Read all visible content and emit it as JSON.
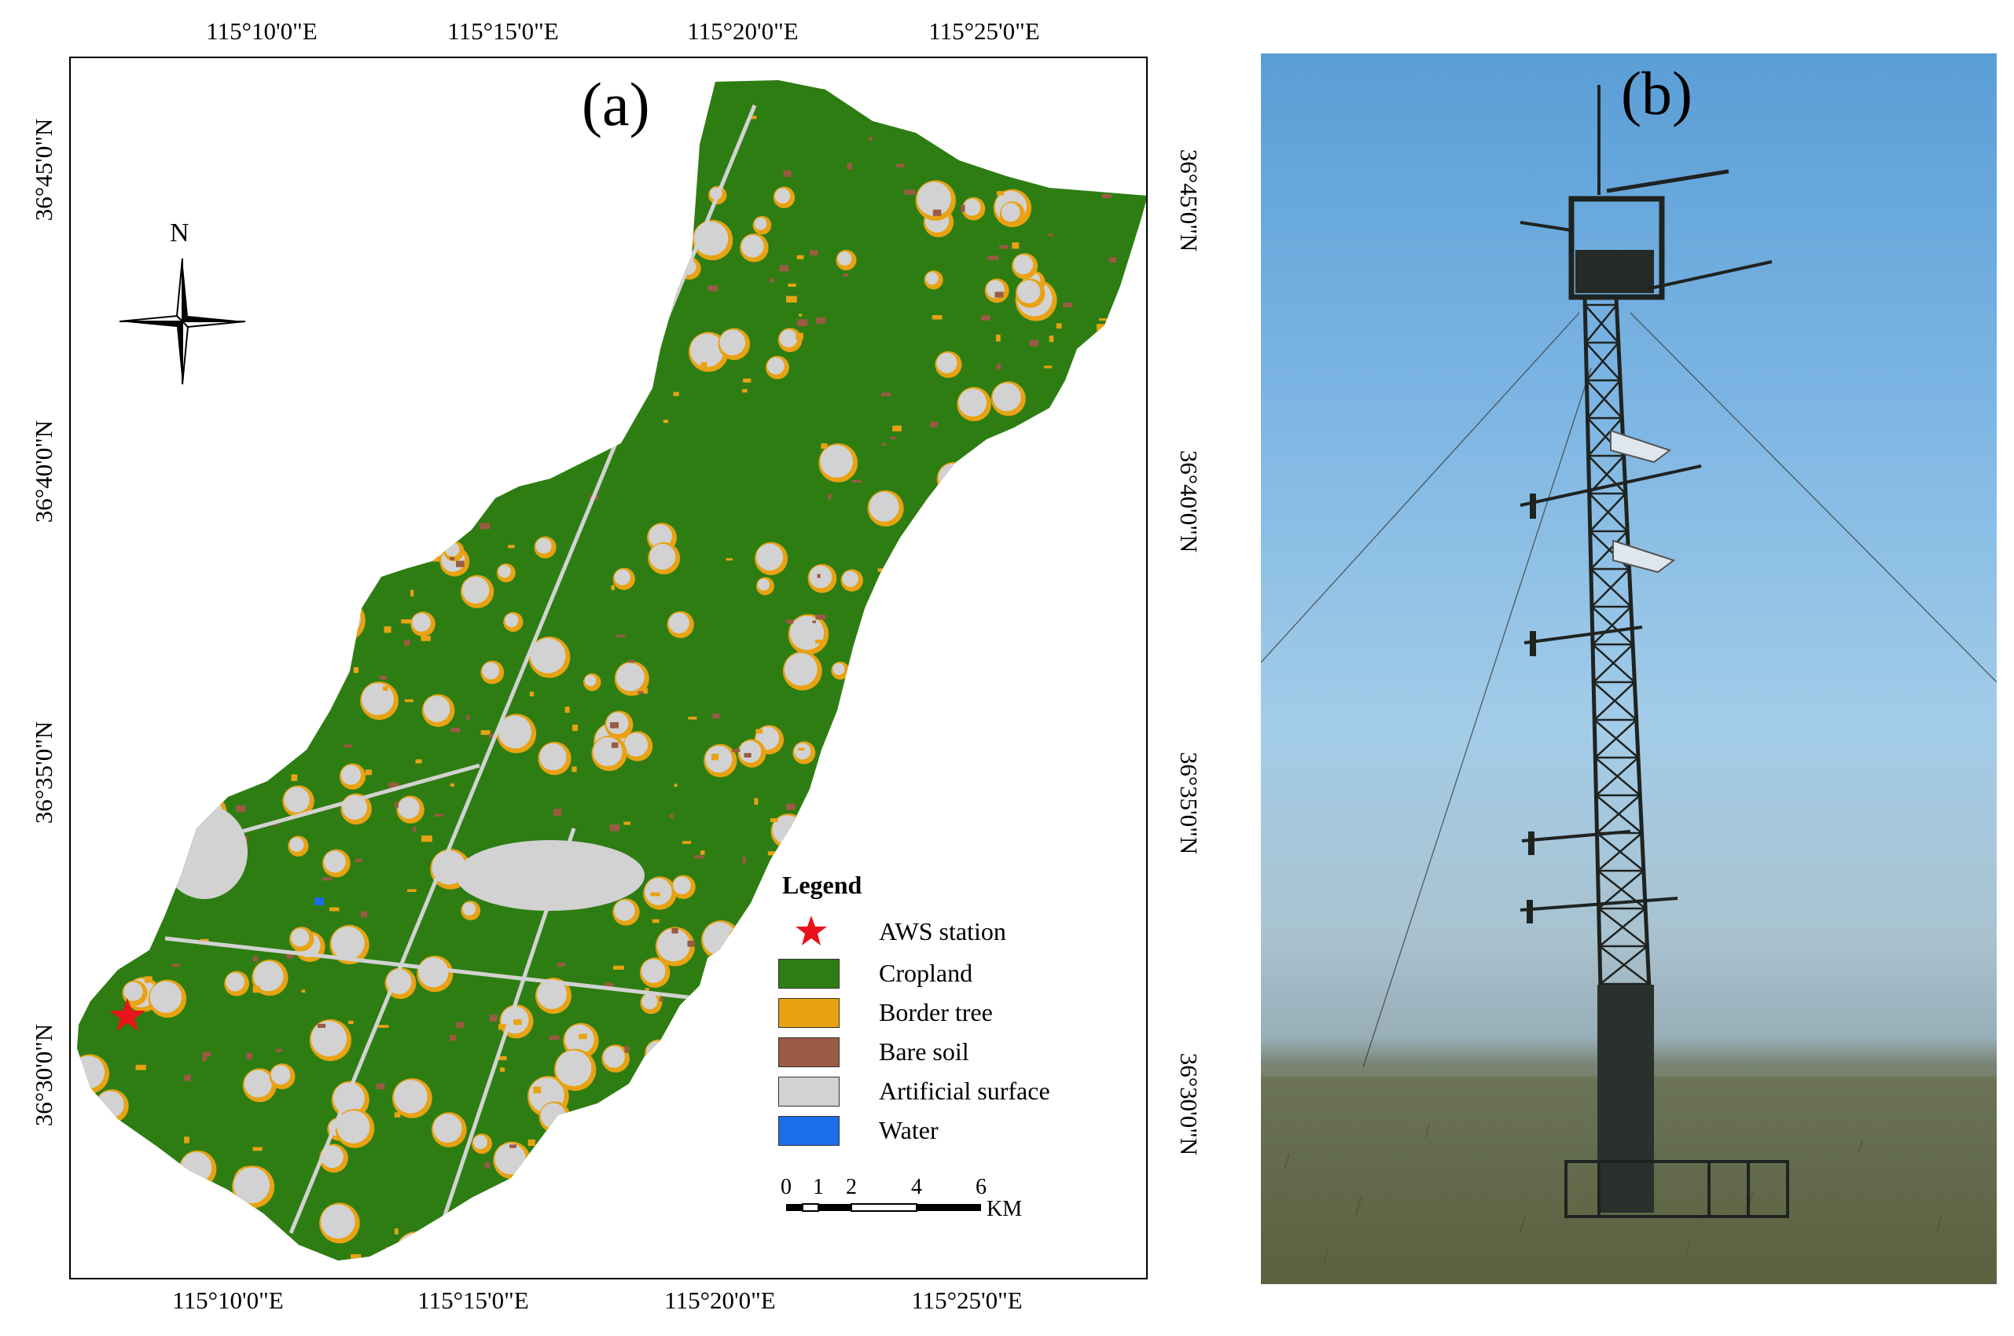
{
  "panel_a": {
    "label": "(a)",
    "top_ticks": [
      "115°10'0\"E",
      "115°15'0\"E",
      "115°20'0\"E",
      "115°25'0\"E"
    ],
    "bottom_ticks": [
      "115°10'0\"E",
      "115°15'0\"E",
      "115°20'0\"E",
      "115°25'0\"E"
    ],
    "left_ticks": [
      "36°45'0\"N",
      "36°40'0\"N",
      "36°35'0\"N",
      "36°30'0\"N"
    ],
    "right_ticks": [
      "36°45'0\"N",
      "36°40'0\"N",
      "36°35'0\"N",
      "36°30'0\"N"
    ],
    "north_arrow": {
      "letter": "N",
      "icon": "compass-rose-icon"
    },
    "legend": {
      "title": "Legend",
      "items": [
        {
          "label": "AWS station",
          "symbol": "red-star-icon",
          "color": "#e8141c"
        },
        {
          "label": "Cropland",
          "color": "#2e7d12"
        },
        {
          "label": "Border tree",
          "color": "#e8a212"
        },
        {
          "label": "Bare soil",
          "color": "#9b5a44"
        },
        {
          "label": "Artificial surface",
          "color": "#d2d2d2"
        },
        {
          "label": "Water",
          "color": "#1a6fe8"
        }
      ]
    },
    "scale_bar": {
      "ticks": [
        "0",
        "1",
        "2",
        "4",
        "6"
      ],
      "unit": "KM"
    }
  },
  "panel_b": {
    "label": "(b)",
    "photo": "flux-tower-photo",
    "colors": {
      "sky": "#7cb5e3",
      "ground": "#5c6342",
      "tower": "#1f2320"
    }
  }
}
